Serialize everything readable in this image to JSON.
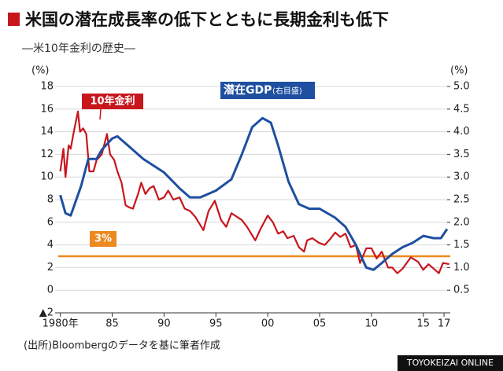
{
  "chart_data": {
    "type": "line",
    "title": "米国の潜在成長率の低下とともに長期金利も低下",
    "subtitle": "―米10年金利の歴史―",
    "y_unit": "(%)",
    "y2_unit": "(%)",
    "source": "(出所)Bloombergのデータを基に筆者作成",
    "footer": "TOYOKEIZAI ONLINE",
    "axis_note": "(右目盛)",
    "xlim": [
      1979.8,
      2017.6
    ],
    "xticks": [
      {
        "value": 1980,
        "label": "1980年"
      },
      {
        "value": 1985,
        "label": "85"
      },
      {
        "value": 1990,
        "label": "90"
      },
      {
        "value": 1995,
        "label": "95"
      },
      {
        "value": 2000,
        "label": "00"
      },
      {
        "value": 2005,
        "label": "05"
      },
      {
        "value": 2010,
        "label": "10"
      },
      {
        "value": 2015,
        "label": "15"
      },
      {
        "value": 2017,
        "label": "17"
      }
    ],
    "ylim": [
      -2,
      18
    ],
    "yticks": [
      18,
      16,
      14,
      12,
      10,
      8,
      6,
      4,
      2,
      0,
      {
        "value": -2,
        "label": "▲2"
      }
    ],
    "y2lim": [
      0,
      5
    ],
    "y2ticks": [
      {
        "value": 5,
        "label": "5.0"
      },
      {
        "value": 4.5,
        "label": "4.5"
      },
      {
        "value": 4,
        "label": "4.0"
      },
      {
        "value": 3.5,
        "label": "3.5"
      },
      {
        "value": 3,
        "label": "3.0"
      },
      {
        "value": 2.5,
        "label": "2.5"
      },
      {
        "value": 2,
        "label": "2.0"
      },
      {
        "value": 1.5,
        "label": "1.5"
      },
      {
        "value": 1,
        "label": "1.0"
      },
      {
        "value": 0.5,
        "label": "0.5"
      }
    ],
    "grid": true,
    "reference_line": {
      "value": 3,
      "label": "3%",
      "color": "#ec8a1f"
    },
    "series": [
      {
        "name": "10年金利",
        "color": "#c8161d",
        "axis": "y",
        "x": [
          1980.0,
          1980.3,
          1980.5,
          1980.8,
          1981.0,
          1981.3,
          1981.7,
          1981.9,
          1982.2,
          1982.5,
          1982.8,
          1983.2,
          1983.5,
          1984.0,
          1984.5,
          1984.8,
          1985.2,
          1985.5,
          1985.9,
          1986.3,
          1986.7,
          1987.0,
          1987.5,
          1987.8,
          1988.2,
          1988.6,
          1989.0,
          1989.5,
          1990.0,
          1990.4,
          1990.9,
          1991.5,
          1992.0,
          1992.5,
          1993.0,
          1993.8,
          1994.3,
          1994.9,
          1995.5,
          1996.0,
          1996.5,
          1997.0,
          1997.5,
          1998.0,
          1998.8,
          1999.3,
          2000.0,
          2000.5,
          2001.0,
          2001.5,
          2001.9,
          2002.5,
          2003.0,
          2003.5,
          2003.8,
          2004.3,
          2004.9,
          2005.5,
          2006.0,
          2006.5,
          2007.0,
          2007.5,
          2008.0,
          2008.5,
          2008.9,
          2009.5,
          2010.0,
          2010.5,
          2011.0,
          2011.6,
          2012.0,
          2012.5,
          2013.0,
          2013.8,
          2014.5,
          2015.0,
          2015.5,
          2016.5,
          2016.9,
          2017.5
        ],
        "values": [
          10.5,
          12.5,
          10.0,
          12.8,
          12.5,
          14.0,
          15.8,
          14.0,
          14.3,
          13.8,
          10.5,
          10.5,
          11.5,
          12.0,
          13.8,
          12.0,
          11.5,
          10.5,
          9.5,
          7.5,
          7.3,
          7.2,
          8.5,
          9.5,
          8.5,
          9.0,
          9.2,
          8.0,
          8.2,
          8.8,
          8.0,
          8.2,
          7.2,
          7.0,
          6.5,
          5.3,
          7.0,
          7.9,
          6.2,
          5.6,
          6.8,
          6.5,
          6.2,
          5.6,
          4.4,
          5.4,
          6.6,
          6.0,
          5.0,
          5.2,
          4.6,
          4.8,
          3.8,
          3.4,
          4.4,
          4.6,
          4.2,
          4.0,
          4.5,
          5.1,
          4.7,
          5.0,
          3.8,
          4.0,
          2.4,
          3.7,
          3.7,
          2.8,
          3.4,
          2.0,
          2.0,
          1.5,
          1.9,
          2.9,
          2.5,
          1.8,
          2.3,
          1.5,
          2.4,
          2.3
        ]
      },
      {
        "name": "潜在GDP",
        "color": "#1e4fa0",
        "axis": "y2",
        "x": [
          1980.0,
          1980.5,
          1981.0,
          1982.0,
          1982.7,
          1983.5,
          1984.0,
          1985.0,
          1985.5,
          1986.5,
          1988.0,
          1990.0,
          1991.5,
          1992.5,
          1993.5,
          1995.0,
          1996.5,
          1997.5,
          1998.5,
          1999.5,
          2000.3,
          2001.0,
          2002.0,
          2003.0,
          2004.0,
          2005.0,
          2006.5,
          2007.5,
          2008.5,
          2009.5,
          2010.2,
          2011.0,
          2012.0,
          2013.0,
          2014.0,
          2015.0,
          2016.0,
          2016.7,
          2017.3
        ],
        "values": [
          2.6,
          2.2,
          2.15,
          2.8,
          3.4,
          3.4,
          3.6,
          3.85,
          3.9,
          3.7,
          3.4,
          3.1,
          2.75,
          2.55,
          2.55,
          2.7,
          2.95,
          3.5,
          4.1,
          4.3,
          4.2,
          3.7,
          2.9,
          2.4,
          2.3,
          2.3,
          2.1,
          1.9,
          1.5,
          1.0,
          0.95,
          1.1,
          1.3,
          1.45,
          1.55,
          1.7,
          1.65,
          1.65,
          1.85
        ]
      }
    ]
  }
}
